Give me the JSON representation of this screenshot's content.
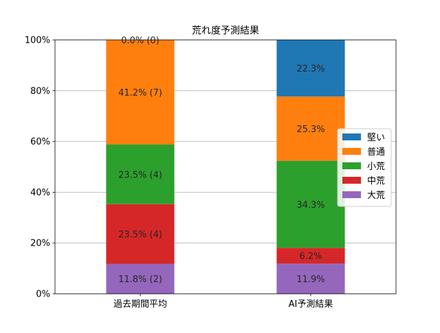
{
  "chart_data": {
    "type": "bar",
    "stacked": true,
    "title": "荒れ度予測結果",
    "xlabel": "",
    "ylabel": "",
    "ylim": [
      0,
      100
    ],
    "y_unit": "%",
    "yticks": [
      "0%",
      "20%",
      "40%",
      "60%",
      "80%",
      "100%"
    ],
    "grid": "horizontal",
    "legend_position": "right",
    "categories": [
      "過去期間平均",
      "AI予測結果"
    ],
    "series": [
      {
        "name": "大荒",
        "color": "#9467bd",
        "values": [
          11.8,
          11.9
        ],
        "labels": [
          "11.8% (2)",
          "11.9%"
        ]
      },
      {
        "name": "中荒",
        "color": "#d62728",
        "values": [
          23.5,
          6.2
        ],
        "labels": [
          "23.5% (4)",
          "6.2%"
        ]
      },
      {
        "name": "小荒",
        "color": "#2ca02c",
        "values": [
          23.5,
          34.3
        ],
        "labels": [
          "23.5% (4)",
          "34.3%"
        ]
      },
      {
        "name": "普通",
        "color": "#ff7f0e",
        "values": [
          41.2,
          25.3
        ],
        "labels": [
          "41.2% (7)",
          "25.3%"
        ]
      },
      {
        "name": "堅い",
        "color": "#1f77b4",
        "values": [
          0.0,
          22.3
        ],
        "labels": [
          "0.0% (0)",
          "22.3%"
        ]
      }
    ],
    "legend_order": [
      "堅い",
      "普通",
      "小荒",
      "中荒",
      "大荒"
    ]
  }
}
